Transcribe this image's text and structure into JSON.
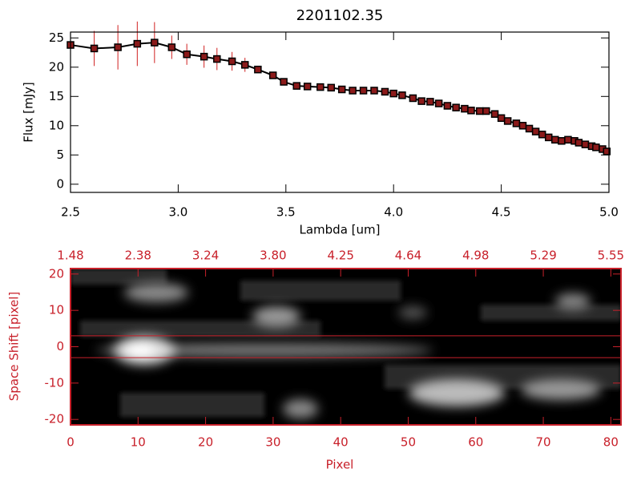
{
  "chart_data": [
    {
      "type": "line",
      "title": "2201102.35",
      "xlabel": "Lambda [um]",
      "ylabel": "Flux [mJy]",
      "xlim": [
        2.5,
        5.0
      ],
      "ylim": [
        -1.4,
        26
      ],
      "xticks": [
        2.5,
        {
          "value": 3,
          "label": "3.0"
        },
        3.5,
        {
          "value": 4,
          "label": "4.0"
        },
        4.5,
        {
          "value": 5,
          "label": "5.0"
        }
      ],
      "yticks": [
        0,
        5,
        10,
        15,
        20,
        25
      ],
      "color": "#000000",
      "marker_color": "#8b1a1a",
      "error_color": "#d02020",
      "x": [
        2.5,
        2.61,
        2.72,
        2.81,
        2.89,
        2.97,
        3.04,
        3.12,
        3.18,
        3.25,
        3.31,
        3.37,
        3.44,
        3.49,
        3.55,
        3.6,
        3.66,
        3.71,
        3.76,
        3.81,
        3.86,
        3.91,
        3.96,
        4.0,
        4.04,
        4.09,
        4.13,
        4.17,
        4.21,
        4.25,
        4.29,
        4.33,
        4.36,
        4.4,
        4.43,
        4.47,
        4.5,
        4.53,
        4.57,
        4.6,
        4.63,
        4.66,
        4.69,
        4.72,
        4.75,
        4.78,
        4.81,
        4.84,
        4.86,
        4.89,
        4.92,
        4.94,
        4.97,
        4.99
      ],
      "values": [
        23.8,
        23.2,
        23.4,
        24.0,
        24.2,
        23.4,
        22.2,
        21.8,
        21.4,
        21.0,
        20.4,
        19.6,
        18.6,
        17.5,
        16.8,
        16.7,
        16.6,
        16.5,
        16.2,
        16.0,
        16.0,
        16.0,
        15.8,
        15.5,
        15.2,
        14.7,
        14.2,
        14.1,
        13.8,
        13.4,
        13.1,
        12.9,
        12.6,
        12.5,
        12.5,
        12.0,
        11.3,
        10.8,
        10.4,
        10.0,
        9.5,
        9.0,
        8.5,
        8.0,
        7.6,
        7.4,
        7.6,
        7.4,
        7.1,
        6.8,
        6.5,
        6.3,
        6.0,
        5.6
      ],
      "errors": [
        1.0,
        3.0,
        3.8,
        3.8,
        3.5,
        2.0,
        1.8,
        1.9,
        1.9,
        1.6,
        1.2,
        0.6,
        0.4,
        0.3,
        0.3,
        0.3,
        0.3,
        0.3,
        0.3,
        0.3,
        0.3,
        0.3,
        0.3,
        0.3,
        0.3,
        0.3,
        0.3,
        0.3,
        0.3,
        0.3,
        0.3,
        0.3,
        0.3,
        0.3,
        0.3,
        0.3,
        0.3,
        0.3,
        0.3,
        0.3,
        0.3,
        0.3,
        0.3,
        0.3,
        0.3,
        0.3,
        0.3,
        0.3,
        0.3,
        0.3,
        0.3,
        0.3,
        0.3,
        0.3
      ]
    },
    {
      "type": "image",
      "xlabel": "Pixel",
      "ylabel": "Space Shift [pixel]",
      "xlim": [
        0,
        81.5
      ],
      "ylim": [
        -21.5,
        21.5
      ],
      "xticks": [
        0,
        10,
        20,
        30,
        40,
        50,
        60,
        70,
        80
      ],
      "top_ticks": [
        {
          "value": 0,
          "label": "1.48"
        },
        {
          "value": 10,
          "label": "2.38"
        },
        {
          "value": 20,
          "label": "3.24"
        },
        {
          "value": 30,
          "label": "3.80"
        },
        {
          "value": 40,
          "label": "4.25"
        },
        {
          "value": 50,
          "label": "4.64"
        },
        {
          "value": 60,
          "label": "4.98"
        },
        {
          "value": 70,
          "label": "5.29"
        },
        {
          "value": 80,
          "label": "5.55"
        }
      ],
      "yticks": [
        -20,
        -10,
        0,
        10,
        20
      ],
      "aperture": [
        3,
        -3
      ],
      "color": "#c8202a"
    }
  ]
}
